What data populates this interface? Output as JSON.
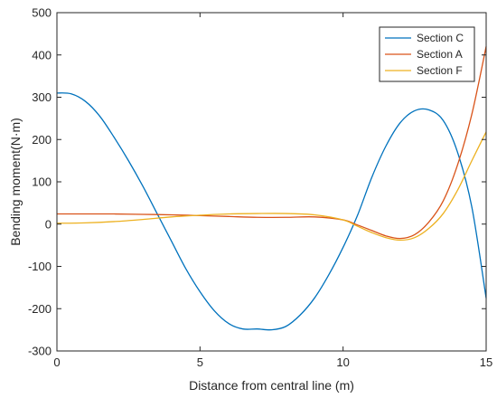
{
  "chart_data": {
    "type": "line",
    "title": "",
    "xlabel": "Distance from central line (m)",
    "ylabel": "Bending moment(N·m)",
    "xlim": [
      0,
      15
    ],
    "ylim": [
      -300,
      500
    ],
    "xticks": [
      0,
      5,
      10,
      15
    ],
    "yticks": [
      -300,
      -200,
      -100,
      0,
      100,
      200,
      300,
      400,
      500
    ],
    "grid": false,
    "legend_position": "top-right",
    "series": [
      {
        "name": "Section C",
        "color": "#0072BD",
        "x": [
          0,
          0.5,
          1,
          1.5,
          2,
          2.5,
          3,
          3.5,
          4,
          4.5,
          5,
          5.5,
          6,
          6.5,
          7,
          7.5,
          8,
          8.5,
          9,
          9.5,
          10,
          10.5,
          11,
          11.5,
          12,
          12.5,
          13,
          13.5,
          14,
          14.5,
          15
        ],
        "y": [
          310,
          308,
          290,
          255,
          205,
          150,
          90,
          25,
          -40,
          -105,
          -160,
          -205,
          -235,
          -248,
          -248,
          -250,
          -242,
          -215,
          -175,
          -120,
          -55,
          20,
          110,
          185,
          240,
          268,
          270,
          245,
          170,
          40,
          -175
        ]
      },
      {
        "name": "Section A",
        "color": "#D95319",
        "x": [
          0,
          1,
          2,
          3,
          4,
          5,
          6,
          7,
          8,
          9,
          10,
          10.5,
          11,
          11.5,
          12,
          12.5,
          13,
          13.5,
          14,
          14.5,
          15
        ],
        "y": [
          24,
          24,
          24,
          23,
          22,
          20,
          18,
          16,
          16,
          17,
          10,
          -2,
          -15,
          -28,
          -34,
          -25,
          5,
          55,
          140,
          260,
          420
        ]
      },
      {
        "name": "Section F",
        "color": "#EDB120",
        "x": [
          0,
          1,
          2,
          3,
          4,
          5,
          6,
          7,
          8,
          9,
          10,
          10.5,
          11,
          11.5,
          12,
          12.5,
          13,
          13.5,
          14,
          14.5,
          15
        ],
        "y": [
          2,
          3,
          6,
          11,
          17,
          21,
          24,
          25,
          25,
          22,
          10,
          -5,
          -20,
          -32,
          -38,
          -32,
          -10,
          25,
          80,
          150,
          218
        ]
      }
    ]
  }
}
